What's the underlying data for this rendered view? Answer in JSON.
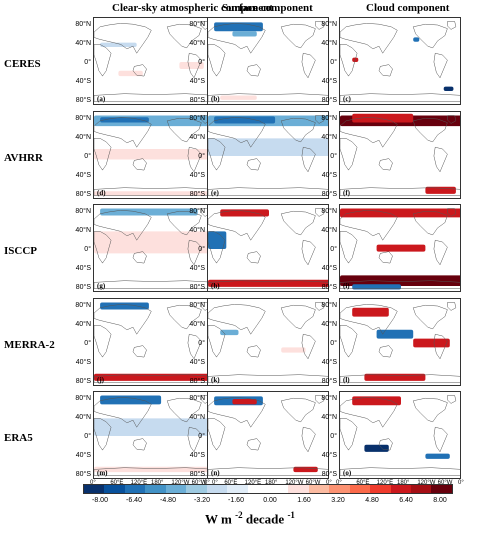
{
  "columns": [
    "Clear-sky atmospheric component",
    "Surface component",
    "Cloud component"
  ],
  "rows": [
    "CERES",
    "AVHRR",
    "ISCCP",
    "MERRA-2",
    "ERA5"
  ],
  "panel_labels": [
    "(a)",
    "(b)",
    "(c)",
    "(d)",
    "(e)",
    "(f)",
    "(g)",
    "(h)",
    "(i)",
    "(j)",
    "(k)",
    "(l)",
    "(m)",
    "(n)",
    "(o)"
  ],
  "lat_labels": [
    "80°N",
    "40°N",
    "0°",
    "40°S",
    "80°S"
  ],
  "lon_labels": [
    "0°",
    "60°E",
    "120°E",
    "180°",
    "120°W",
    "60°W",
    "0°"
  ],
  "colorbar": {
    "ticks": [
      "-8.00",
      "-6.40",
      "-4.80",
      "-3.20",
      "-1.60",
      "0.00",
      "1.60",
      "3.20",
      "4.80",
      "6.40",
      "8.00"
    ],
    "colors": [
      "#08306b",
      "#08519c",
      "#2171b5",
      "#4292c6",
      "#6baed6",
      "#9ecae1",
      "#c6dbef",
      "#e1edf8",
      "#ffffff",
      "#ffffff",
      "#fde0dd",
      "#fcbba1",
      "#fc9272",
      "#fb6a4a",
      "#ef3b2c",
      "#cb181d",
      "#a50f15",
      "#67000d"
    ],
    "units_prefix": "W m",
    "units_sup1": "-2",
    "units_mid": " decade",
    "units_sup2": "-1"
  }
}
